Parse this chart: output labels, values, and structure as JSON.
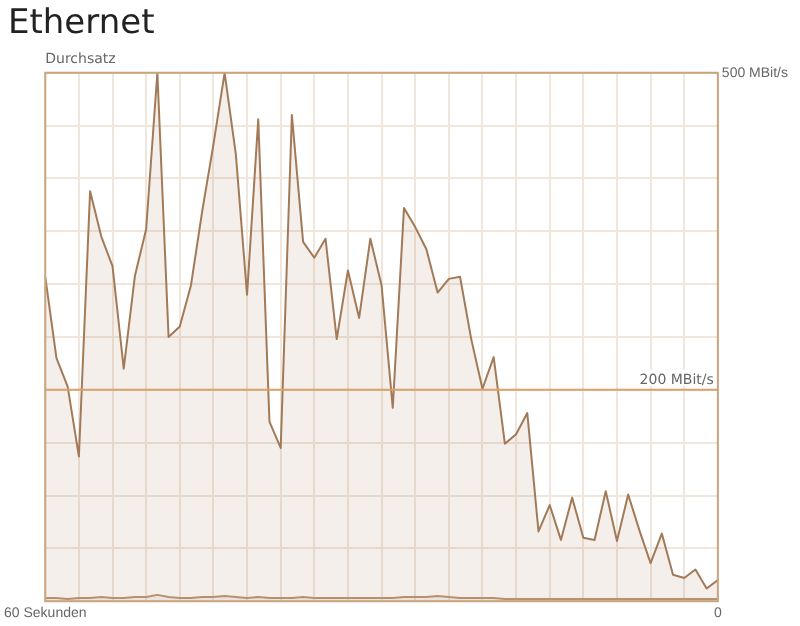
{
  "chart_data": {
    "type": "area",
    "title": "Ethernet",
    "ylabel": "Durchsatz",
    "x": [
      60,
      59,
      58,
      57,
      56,
      55,
      54,
      53,
      52,
      51,
      50,
      49,
      48,
      47,
      46,
      45,
      44,
      43,
      42,
      41,
      40,
      39,
      38,
      37,
      36,
      35,
      34,
      33,
      32,
      31,
      30,
      29,
      28,
      27,
      26,
      25,
      24,
      23,
      22,
      21,
      20,
      19,
      18,
      17,
      16,
      15,
      14,
      13,
      12,
      11,
      10,
      9,
      8,
      7,
      6,
      5,
      4,
      3,
      2,
      1,
      0
    ],
    "series": [
      {
        "color": "#a27a58",
        "values": [
          307,
          230,
          203,
          137,
          388,
          345,
          317,
          220,
          308,
          352,
          500,
          250,
          260,
          299,
          369,
          432,
          500,
          423,
          290,
          456,
          170,
          145,
          460,
          340,
          325,
          343,
          248,
          313,
          268,
          343,
          299,
          183,
          372,
          354,
          333,
          292,
          305,
          307,
          248,
          201,
          231,
          149,
          158,
          178,
          66,
          91,
          58,
          98,
          60,
          58,
          104,
          57,
          101,
          67,
          36,
          64,
          25,
          22,
          30,
          12,
          20
        ]
      },
      {
        "color": "#b89474",
        "values": [
          3,
          3,
          2,
          3,
          3,
          4,
          3,
          3,
          4,
          4,
          6,
          4,
          3,
          3,
          4,
          4,
          5,
          4,
          3,
          4,
          3,
          3,
          3,
          4,
          3,
          3,
          3,
          3,
          3,
          3,
          3,
          3,
          4,
          4,
          4,
          5,
          4,
          3,
          3,
          3,
          3,
          2,
          2,
          2,
          2,
          2,
          2,
          2,
          2,
          2,
          2,
          2,
          2,
          2,
          2,
          2,
          2,
          2,
          2,
          2,
          2
        ]
      }
    ],
    "xlim": [
      60,
      0
    ],
    "xticks": [
      {
        "value": 60,
        "label": "60 Sekunden"
      },
      {
        "value": 57,
        "label": null
      },
      {
        "value": 54,
        "label": null
      },
      {
        "value": 51,
        "label": null
      },
      {
        "value": 48,
        "label": null
      },
      {
        "value": 45,
        "label": null
      },
      {
        "value": 42,
        "label": null
      },
      {
        "value": 39,
        "label": null
      },
      {
        "value": 36,
        "label": null
      },
      {
        "value": 33,
        "label": null
      },
      {
        "value": 30,
        "label": null
      },
      {
        "value": 27,
        "label": null
      },
      {
        "value": 24,
        "label": null
      },
      {
        "value": 21,
        "label": null
      },
      {
        "value": 18,
        "label": null
      },
      {
        "value": 15,
        "label": null
      },
      {
        "value": 12,
        "label": null
      },
      {
        "value": 9,
        "label": null
      },
      {
        "value": 6,
        "label": null
      },
      {
        "value": 3,
        "label": null
      },
      {
        "value": 0,
        "label": "0"
      }
    ],
    "ylim": [
      0,
      500
    ],
    "yticks": [
      {
        "value": 0,
        "label": null
      },
      {
        "value": 50,
        "label": null
      },
      {
        "value": 100,
        "label": null
      },
      {
        "value": 150,
        "label": null
      },
      {
        "value": 200,
        "label": null
      },
      {
        "value": 250,
        "label": null
      },
      {
        "value": 300,
        "label": null
      },
      {
        "value": 350,
        "label": null
      },
      {
        "value": 400,
        "label": null
      },
      {
        "value": 450,
        "label": null
      },
      {
        "value": 500,
        "label": "500 MBit/s"
      }
    ],
    "ref_lines": [
      {
        "axis": "y",
        "value": 200,
        "label": "200 MBit/s",
        "color": "#d9a06a"
      }
    ],
    "grid": true,
    "legend": false,
    "marker": "none"
  }
}
